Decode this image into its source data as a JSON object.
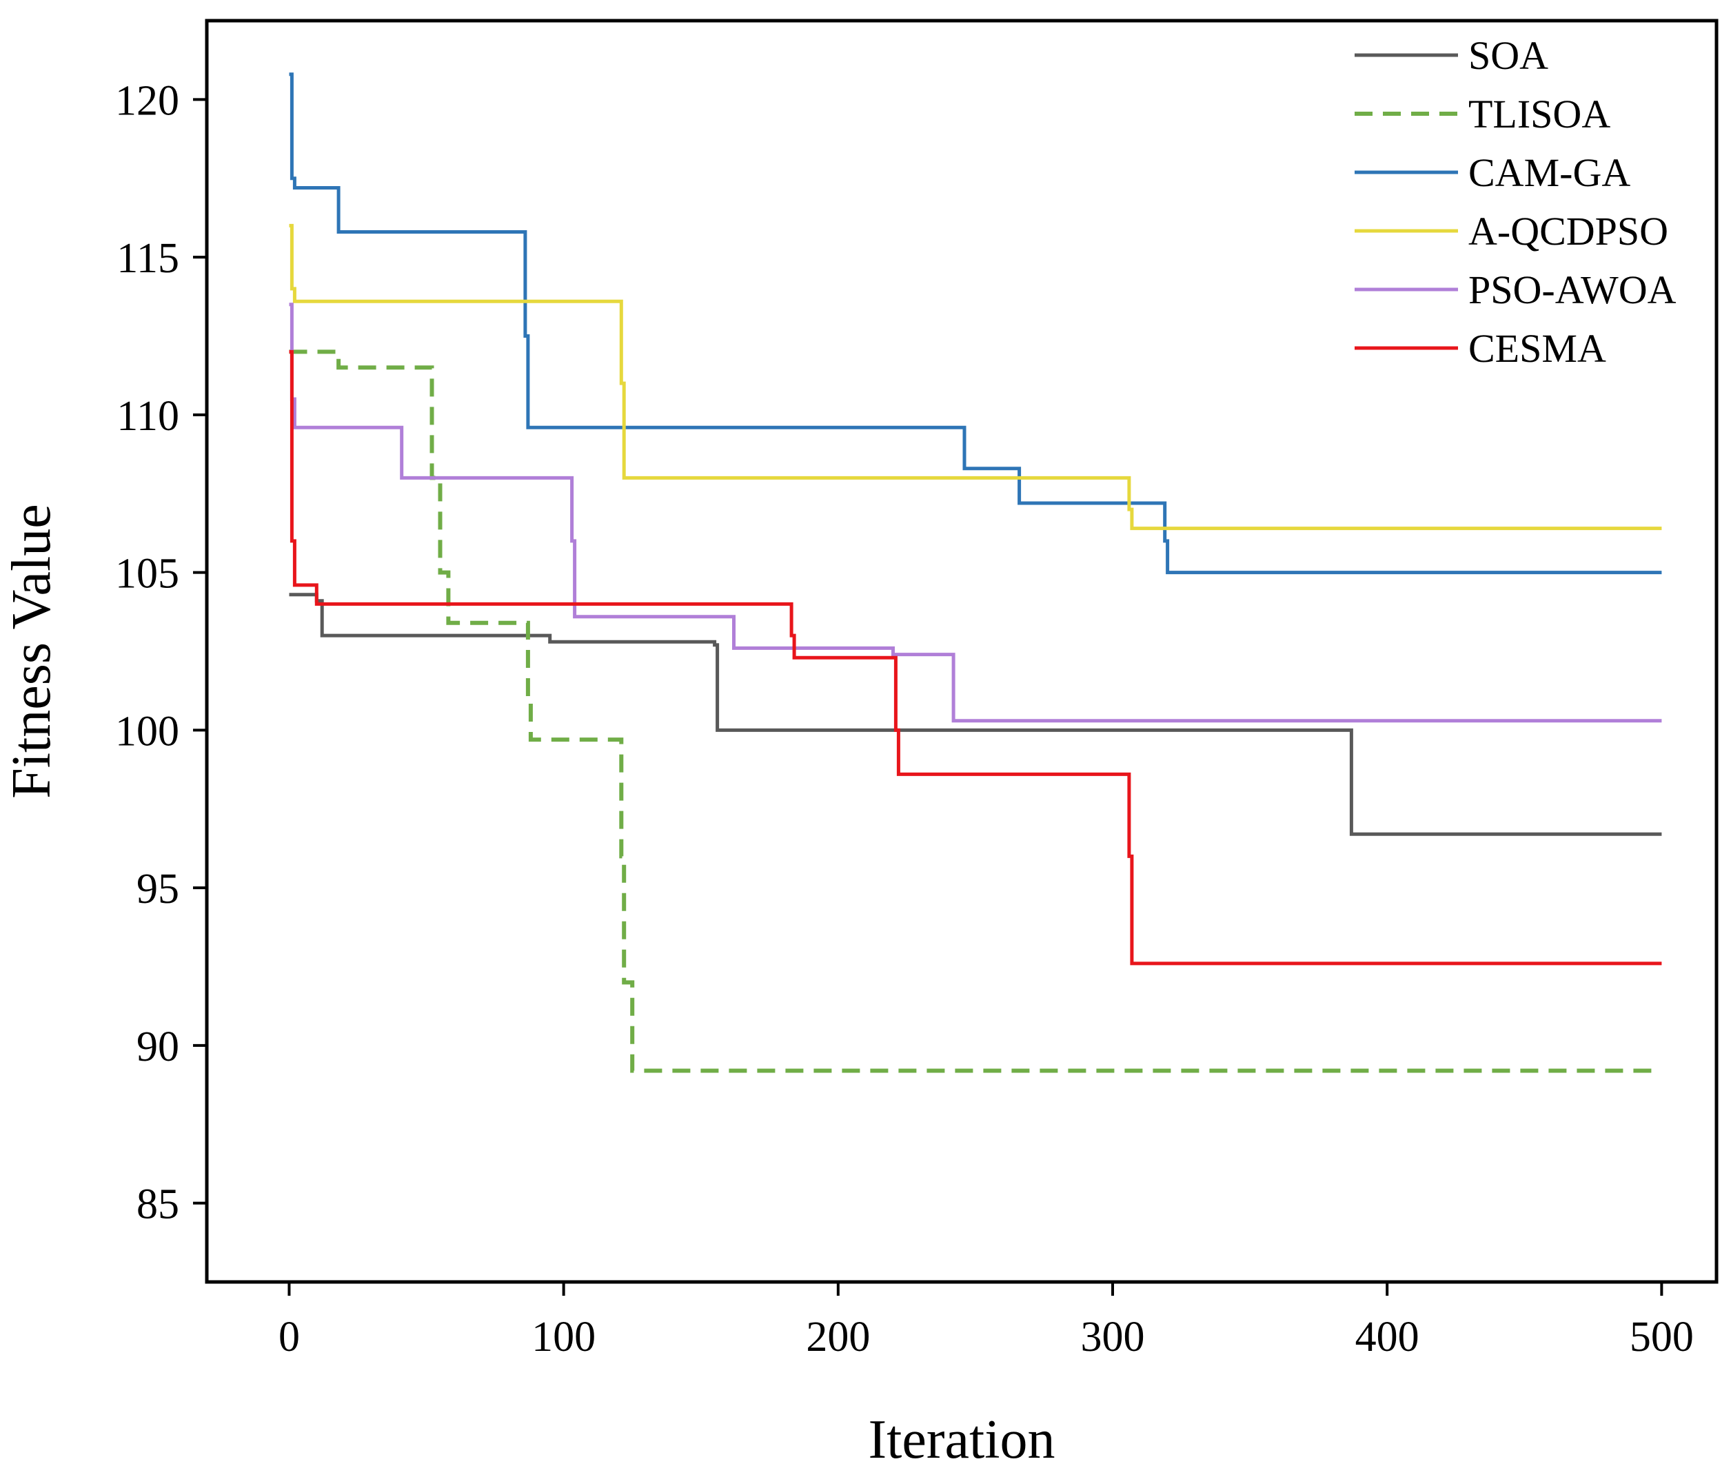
{
  "chart_data": {
    "type": "line",
    "title": "",
    "xlabel": "Iteration",
    "ylabel": "Fitness Value",
    "xlim": [
      -30,
      520
    ],
    "ylim": [
      82.5,
      122.5
    ],
    "xticks": [
      0,
      100,
      200,
      300,
      400,
      500
    ],
    "yticks": [
      85,
      90,
      95,
      100,
      105,
      110,
      115,
      120
    ],
    "legend_position": "top-right",
    "grid": false,
    "series": [
      {
        "name": "SOA",
        "color": "#595959",
        "dash": "solid",
        "x": [
          0,
          10,
          12,
          95,
          155,
          156,
          385,
          387,
          500
        ],
        "y": [
          104.3,
          104.1,
          103.0,
          102.8,
          102.7,
          100.0,
          100.0,
          96.7,
          96.7
        ]
      },
      {
        "name": "TLISOA",
        "color": "#70AD47",
        "dash": "dashed",
        "x": [
          0,
          15,
          18,
          50,
          52,
          55,
          58,
          85,
          87,
          88,
          90,
          120,
          121,
          122,
          125,
          500
        ],
        "y": [
          112.0,
          112.0,
          111.5,
          111.5,
          108.0,
          105.0,
          103.4,
          103.4,
          101.0,
          99.7,
          99.7,
          99.7,
          96.0,
          92.0,
          89.2,
          89.2
        ]
      },
      {
        "name": "CAM-GA",
        "color": "#2E75B6",
        "dash": "solid",
        "x": [
          0,
          1,
          2,
          17,
          18,
          85,
          86,
          87,
          245,
          246,
          265,
          266,
          318,
          319,
          320,
          500
        ],
        "y": [
          120.8,
          117.5,
          117.2,
          117.2,
          115.8,
          115.8,
          112.5,
          109.6,
          109.6,
          108.3,
          108.3,
          107.2,
          107.2,
          106.0,
          105.0,
          105.0
        ]
      },
      {
        "name": "A-QCDPSO",
        "color": "#E6D83D",
        "dash": "solid",
        "x": [
          0,
          1,
          2,
          120,
          121,
          122,
          305,
          306,
          307,
          500
        ],
        "y": [
          116.0,
          114.0,
          113.6,
          113.6,
          111.0,
          108.0,
          108.0,
          107.0,
          106.4,
          106.4
        ]
      },
      {
        "name": "PSO-AWOA",
        "color": "#B07FD8",
        "dash": "solid",
        "x": [
          0,
          1,
          2,
          40,
          41,
          102,
          103,
          104,
          160,
          162,
          220,
          240,
          242,
          500
        ],
        "y": [
          113.5,
          110.5,
          109.6,
          109.6,
          108.0,
          108.0,
          106.0,
          103.6,
          103.6,
          102.6,
          102.4,
          102.4,
          100.3,
          100.3
        ]
      },
      {
        "name": "CESMA",
        "color": "#E8151B",
        "dash": "solid",
        "x": [
          0,
          1,
          2,
          8,
          10,
          182,
          183,
          184,
          220,
          221,
          222,
          305,
          306,
          307,
          500
        ],
        "y": [
          112.0,
          106.0,
          104.6,
          104.6,
          104.0,
          104.0,
          103.0,
          102.3,
          102.3,
          100.0,
          98.6,
          98.6,
          96.0,
          92.6,
          92.6
        ]
      }
    ]
  }
}
